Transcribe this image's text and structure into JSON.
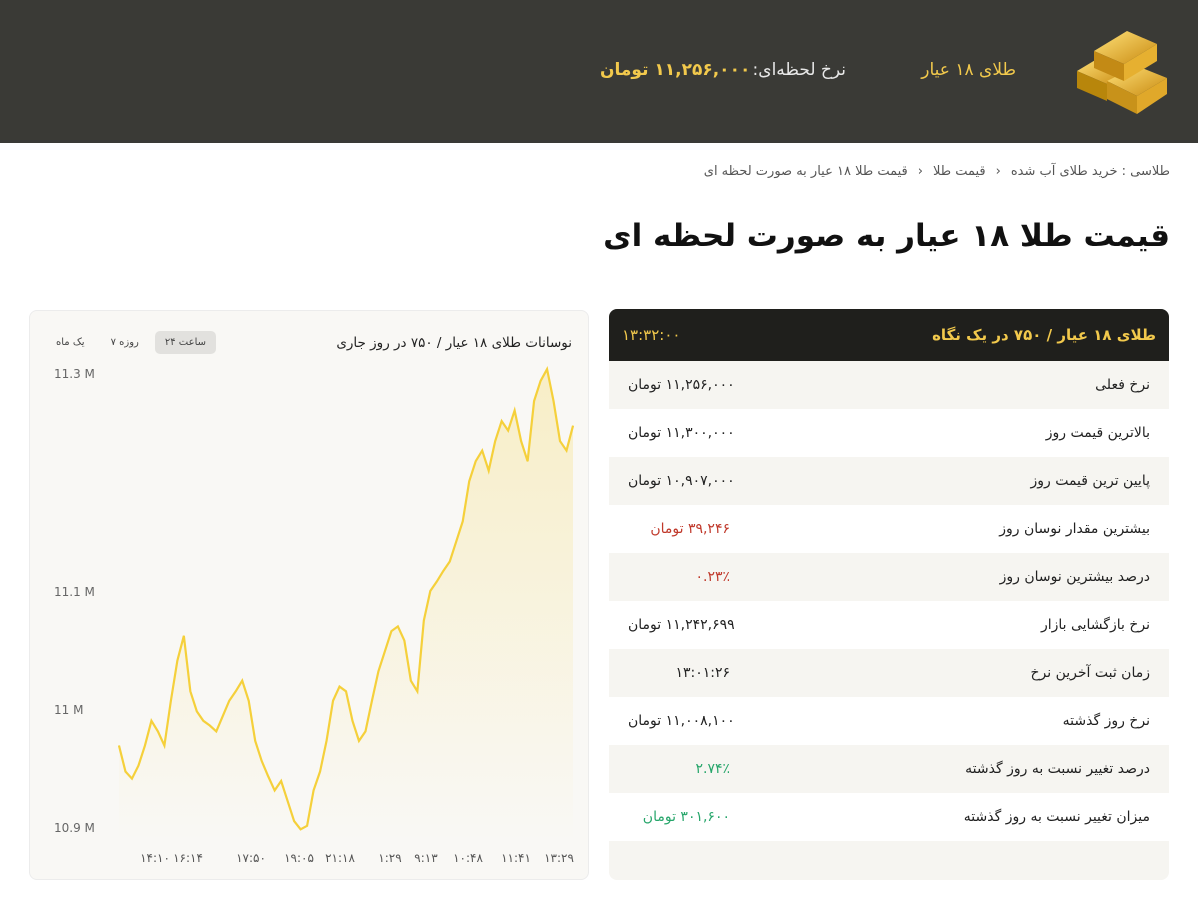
{
  "header": {
    "product": "طلای ۱۸ عیار",
    "rate_label": "نرخ لحظه‌ای:",
    "rate_value": "۱۱,۲۵۶,۰۰۰ تومان"
  },
  "breadcrumb": [
    "طلاسی : خرید طلای آب شده",
    "قیمت طلا",
    "قیمت طلا ۱۸ عیار به صورت لحظه ای"
  ],
  "page_title": "قیمت طلا ۱۸ عیار به صورت لحظه ای",
  "panel": {
    "title": "طلای ۱۸ عیار / ۷۵۰ در یک نگاه",
    "time": "۱۳:۳۲:۰۰",
    "rows": [
      {
        "label": "نرخ فعلی",
        "value": "۱۱,۲۵۶,۰۰۰ تومان",
        "tone": ""
      },
      {
        "label": "بالاترین قیمت روز",
        "value": "۱۱,۳۰۰,۰۰۰ تومان",
        "tone": ""
      },
      {
        "label": "پایین ترین قیمت روز",
        "value": "۱۰,۹۰۷,۰۰۰ تومان",
        "tone": ""
      },
      {
        "label": "بیشترین مقدار نوسان روز",
        "value": "۳۹,۲۴۶ تومان",
        "tone": "red"
      },
      {
        "label": "درصد بیشترین نوسان روز",
        "value": "۰.۲۳٪",
        "tone": "red"
      },
      {
        "label": "نرخ بازگشایی بازار",
        "value": "۱۱,۲۴۲,۶۹۹ تومان",
        "tone": ""
      },
      {
        "label": "زمان ثبت آخرین نرخ",
        "value": "۱۳:۰۱:۲۶",
        "tone": ""
      },
      {
        "label": "نرخ روز گذشته",
        "value": "۱۱,۰۰۸,۱۰۰ تومان",
        "tone": ""
      },
      {
        "label": "درصد تغییر نسبت به روز گذشته",
        "value": "۲.۷۴٪",
        "tone": "green"
      },
      {
        "label": "میزان تغییر نسبت به روز گذشته",
        "value": "۳۰۱,۶۰۰ تومان",
        "tone": "green"
      }
    ]
  },
  "chart_tabs": [
    "یک ماه",
    "۷ روزه",
    "۲۴ ساعت"
  ],
  "chart_data": {
    "type": "area",
    "title": "نوسانات طلای ۱۸ عیار / ۷۵۰ در روز جاری",
    "line_color": "#f5d03b",
    "y_ticks": [
      {
        "value": 10.9,
        "label": "10.9 M"
      },
      {
        "value": 11,
        "label": "11 M"
      },
      {
        "value": 11.1,
        "label": "11.1 M"
      },
      {
        "value": 11.3,
        "label": "11.3 M"
      }
    ],
    "ylim": [
      10.9,
      11.3
    ],
    "x_ticks": [
      "۱۴:۱۰",
      "۱۶:۱۴",
      "۱۷:۵۰",
      "۱۹:۰۵",
      "۲۱:۱۸",
      "۱:۲۹",
      "۹:۱۳",
      "۱۰:۴۸",
      "۱۱:۴۱",
      "۱۳:۲۹"
    ],
    "values_millions": [
      10.969,
      10.947,
      10.941,
      10.952,
      10.969,
      10.99,
      10.981,
      10.969,
      11.007,
      11.041,
      11.062,
      11.015,
      10.998,
      10.99,
      10.986,
      10.981,
      10.994,
      11.007,
      11.015,
      11.024,
      11.007,
      10.973,
      10.956,
      10.943,
      10.931,
      10.939,
      10.922,
      10.905,
      10.898,
      10.901,
      10.931,
      10.947,
      10.973,
      11.007,
      11.019,
      11.015,
      10.99,
      10.973,
      10.981,
      11.007,
      11.032,
      11.049,
      11.066,
      11.07,
      11.058,
      11.024,
      11.015,
      11.075,
      11.1,
      11.108,
      11.117,
      11.125,
      11.142,
      11.159,
      11.193,
      11.21,
      11.219,
      11.202,
      11.227,
      11.244,
      11.236,
      11.253,
      11.227,
      11.21,
      11.261,
      11.278,
      11.288,
      11.261,
      11.227,
      11.219,
      11.24
    ]
  }
}
